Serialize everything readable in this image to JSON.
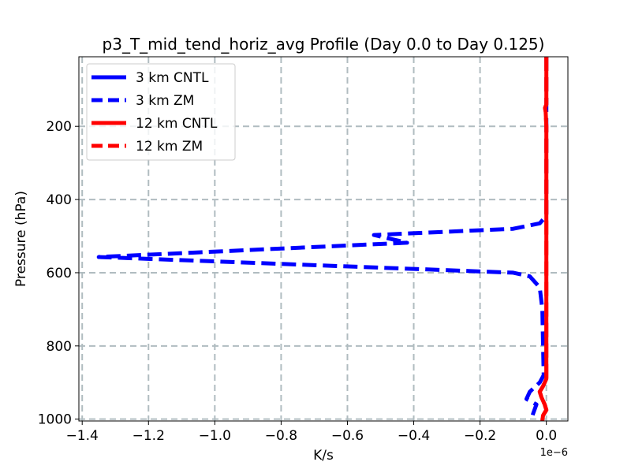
{
  "chart_data": {
    "type": "line",
    "title": "p3_T_mid_tend_horiz_avg Profile (Day 0.0 to Day 0.125)",
    "xlabel": "K/s",
    "ylabel": "Pressure (hPa)",
    "x_offset_label": "1e−6",
    "x_scale": 1e-06,
    "xlim": [
      -1.41,
      0.065
    ],
    "ylim": [
      1005,
      10
    ],
    "x_ticks": [
      -1.4,
      -1.2,
      -1.0,
      -0.8,
      -0.6,
      -0.4,
      -0.2,
      0.0
    ],
    "x_tick_labels": [
      "−1.4",
      "−1.2",
      "−1.0",
      "−0.8",
      "−0.6",
      "−0.4",
      "−0.2",
      "0.0"
    ],
    "y_ticks": [
      200,
      400,
      600,
      800,
      1000
    ],
    "y_tick_labels": [
      "200",
      "400",
      "600",
      "800",
      "1000"
    ],
    "grid": true,
    "legend_position": "top-left",
    "series": [
      {
        "name": "3 km CNTL",
        "color": "#0000ff",
        "style": "solid",
        "points": []
      },
      {
        "name": "3 km ZM",
        "color": "#0000ff",
        "style": "dashed",
        "points": [
          [
            0.0,
            10
          ],
          [
            0.0,
            100
          ],
          [
            0.0,
            200
          ],
          [
            0.0,
            300
          ],
          [
            0.0,
            400
          ],
          [
            0.0,
            440
          ],
          [
            -0.005,
            450
          ],
          [
            -0.02,
            465
          ],
          [
            -0.1,
            480
          ],
          [
            -0.52,
            497
          ],
          [
            -0.42,
            518
          ],
          [
            -1.35,
            557
          ],
          [
            -0.1,
            600
          ],
          [
            -0.05,
            610
          ],
          [
            -0.02,
            640
          ],
          [
            -0.012,
            700
          ],
          [
            -0.01,
            800
          ],
          [
            -0.008,
            880
          ],
          [
            -0.02,
            900
          ],
          [
            -0.05,
            925
          ],
          [
            -0.06,
            945
          ],
          [
            -0.03,
            960
          ],
          [
            -0.04,
            985
          ],
          [
            -0.045,
            1000
          ]
        ]
      },
      {
        "name": "12 km CNTL",
        "color": "#ff0000",
        "style": "solid",
        "points": [
          [
            0.0,
            10
          ],
          [
            0.0,
            100
          ],
          [
            0.0,
            140
          ],
          [
            -0.004,
            150
          ],
          [
            -0.002,
            160
          ],
          [
            0.0,
            200
          ],
          [
            0.0,
            400
          ],
          [
            0.0,
            600
          ],
          [
            0.0,
            800
          ],
          [
            0.0,
            890
          ],
          [
            -0.01,
            910
          ],
          [
            -0.02,
            925
          ],
          [
            -0.015,
            940
          ],
          [
            -0.005,
            960
          ],
          [
            0.0,
            975
          ],
          [
            -0.01,
            990
          ],
          [
            -0.012,
            1005
          ]
        ]
      },
      {
        "name": "12 km ZM",
        "color": "#ff0000",
        "style": "dashed",
        "points": [
          [
            0.0,
            10
          ],
          [
            0.0,
            100
          ],
          [
            0.0,
            140
          ],
          [
            -0.004,
            150
          ],
          [
            -0.002,
            160
          ],
          [
            0.0,
            200
          ],
          [
            0.0,
            400
          ],
          [
            0.0,
            600
          ],
          [
            0.0,
            800
          ],
          [
            0.0,
            890
          ],
          [
            -0.01,
            910
          ],
          [
            -0.02,
            925
          ],
          [
            -0.015,
            940
          ],
          [
            -0.005,
            960
          ],
          [
            0.0,
            975
          ],
          [
            -0.01,
            990
          ],
          [
            -0.012,
            1005
          ]
        ]
      }
    ]
  }
}
